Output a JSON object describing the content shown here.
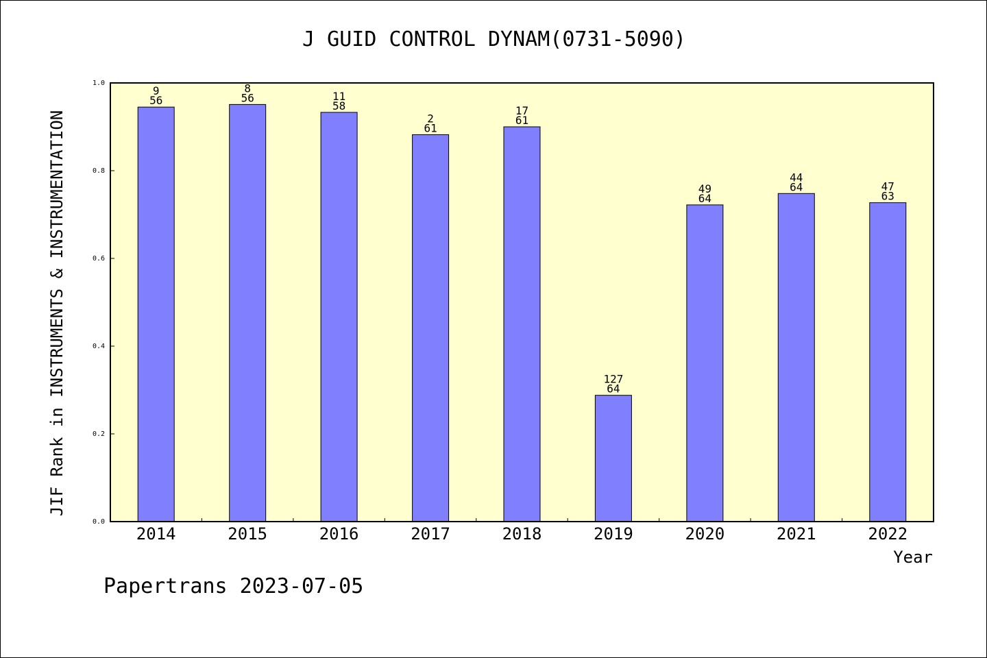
{
  "chart_data": {
    "type": "bar",
    "title": "J GUID CONTROL DYNAM(0731-5090)",
    "xlabel": "Year",
    "ylabel": "JIF Rank in INSTRUMENTS & INSTRUMENTATION",
    "ylim": [
      0,
      1.0
    ],
    "yticks": [
      "0.0",
      "0.2",
      "0.4",
      "0.6",
      "0.8",
      "1.0"
    ],
    "categories": [
      "2014",
      "2015",
      "2016",
      "2017",
      "2018",
      "2019",
      "2020",
      "2021",
      "2022"
    ],
    "values": [
      0.945,
      0.951,
      0.933,
      0.882,
      0.9,
      0.288,
      0.722,
      0.748,
      0.727
    ],
    "rank_labels": [
      {
        "rank": "9",
        "total": "56"
      },
      {
        "rank": "8",
        "total": "56"
      },
      {
        "rank": "11",
        "total": "58"
      },
      {
        "rank": "2",
        "total": "61"
      },
      {
        "rank": "17",
        "total": "61"
      },
      {
        "rank": "127",
        "total": "64"
      },
      {
        "rank": "49",
        "total": "64"
      },
      {
        "rank": "44",
        "total": "64"
      },
      {
        "rank": "47",
        "total": "63"
      }
    ],
    "grid": false,
    "colors": {
      "bar": "#8080ff",
      "plot_background": "#ffffd0",
      "axis": "#000000"
    }
  },
  "footer": "Papertrans 2023-07-05"
}
